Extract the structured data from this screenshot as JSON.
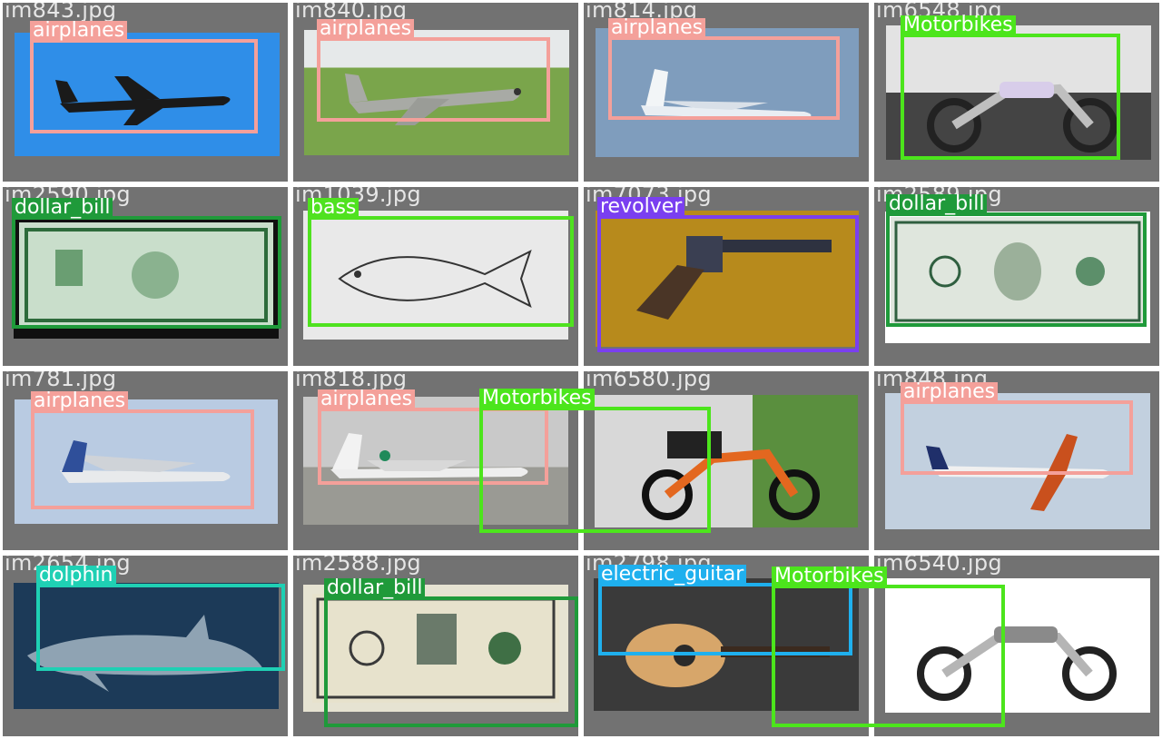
{
  "colors": {
    "tile_bg": "#727272",
    "filename_text": "#e6e6e6",
    "airplanes": "#f4a09a",
    "Motorbikes": "#4ce51c",
    "dollar_bill": "#1f9a3a",
    "bass": "#4fe21f",
    "revolver": "#7a3ff0",
    "dolphin": "#1fd0b4",
    "electric_guitar": "#1fb0ee"
  },
  "tiles": [
    {
      "filename": "im843.jpg",
      "photo_bg": "#2f8ee8",
      "object_icon": "airplane",
      "boxes": [
        {
          "label": "airplanes",
          "color_key": "airplanes"
        }
      ]
    },
    {
      "filename": "im840.jpg",
      "photo_bg": "#6f9b46",
      "object_icon": "airplane",
      "boxes": [
        {
          "label": "airplanes",
          "color_key": "airplanes"
        }
      ]
    },
    {
      "filename": "im814.jpg",
      "photo_bg": "#7f9dbd",
      "object_icon": "airplane",
      "boxes": [
        {
          "label": "airplanes",
          "color_key": "airplanes"
        }
      ]
    },
    {
      "filename": "im6548.jpg",
      "photo_bg": "#cfcfcf",
      "object_icon": "motorbike",
      "boxes": [
        {
          "label": "Motorbikes",
          "color_key": "Motorbikes"
        }
      ]
    },
    {
      "filename": "im2590.jpg",
      "photo_bg": "#c8dcc8",
      "object_icon": "banknote",
      "boxes": [
        {
          "label": "dollar_bill",
          "color_key": "dollar_bill"
        }
      ]
    },
    {
      "filename": "im1039.jpg",
      "photo_bg": "#e9e9e9",
      "object_icon": "fish",
      "boxes": [
        {
          "label": "bass",
          "color_key": "bass"
        }
      ]
    },
    {
      "filename": "im7073.jpg",
      "photo_bg": "#b78a1c",
      "object_icon": "revolver",
      "boxes": [
        {
          "label": "revolver",
          "color_key": "revolver"
        }
      ]
    },
    {
      "filename": "im2589.jpg",
      "photo_bg": "#dfe7df",
      "object_icon": "banknote",
      "boxes": [
        {
          "label": "dollar_bill",
          "color_key": "dollar_bill"
        }
      ]
    },
    {
      "filename": "im781.jpg",
      "photo_bg": "#b9cbe2",
      "object_icon": "airplane",
      "boxes": [
        {
          "label": "airplanes",
          "color_key": "airplanes"
        }
      ]
    },
    {
      "filename": "im818.jpg",
      "photo_bg": "#b7b7b2",
      "object_icon": "airplane",
      "boxes": [
        {
          "label": "airplanes",
          "color_key": "airplanes"
        },
        {
          "label": "Motorbikes",
          "color_key": "Motorbikes"
        }
      ]
    },
    {
      "filename": "im6580.jpg",
      "photo_bg": "#d7d7d7",
      "object_icon": "motorbike",
      "boxes": []
    },
    {
      "filename": "im848.jpg",
      "photo_bg": "#c2d0df",
      "object_icon": "airplane",
      "boxes": [
        {
          "label": "airplanes",
          "color_key": "airplanes"
        }
      ]
    },
    {
      "filename": "im2654.jpg",
      "photo_bg": "#1c3a58",
      "object_icon": "dolphin",
      "boxes": [
        {
          "label": "dolphin",
          "color_key": "dolphin"
        }
      ]
    },
    {
      "filename": "im2588.jpg",
      "photo_bg": "#e6e3d2",
      "object_icon": "banknote",
      "boxes": [
        {
          "label": "dollar_bill",
          "color_key": "dollar_bill"
        }
      ]
    },
    {
      "filename": "im2798.jpg",
      "photo_bg": "#3a3a3a",
      "object_icon": "guitar",
      "boxes": [
        {
          "label": "electric_guitar",
          "color_key": "electric_guitar"
        },
        {
          "label": "Motorbikes",
          "color_key": "Motorbikes"
        }
      ]
    },
    {
      "filename": "im6540.jpg",
      "photo_bg": "#ffffff",
      "object_icon": "motorbike",
      "boxes": []
    }
  ]
}
